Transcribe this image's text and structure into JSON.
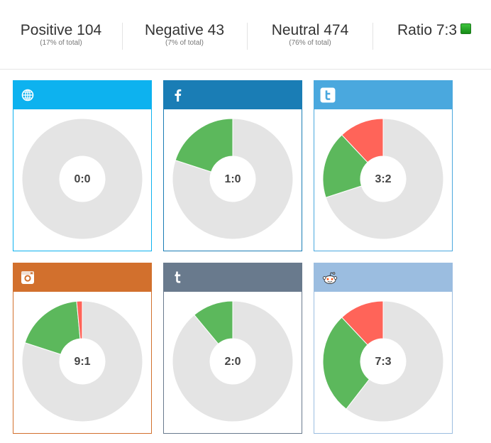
{
  "summary": {
    "positive": {
      "label": "Positive 104",
      "sub": "(17% of total)"
    },
    "negative": {
      "label": "Negative 43",
      "sub": "(7% of total)"
    },
    "neutral": {
      "label": "Neutral 474",
      "sub": "(76% of total)"
    },
    "ratio": {
      "label": "Ratio 7:3"
    }
  },
  "colors": {
    "positive": "#5cb85c",
    "negative": "#ff6459",
    "neutral": "#e4e4e4",
    "web": "#0db2ef",
    "facebook": "#1a7db5",
    "twitter": "#4aa8de",
    "instagram": "#d2702d",
    "tumblr": "#697a8d",
    "reddit": "#9bbde0"
  },
  "chart_data": [
    {
      "type": "pie",
      "source": "web-icon",
      "label": "0:0",
      "positive": 0,
      "negative": 0
    },
    {
      "type": "pie",
      "source": "facebook-icon",
      "label": "1:0",
      "positive": 0.2,
      "negative": 0
    },
    {
      "type": "pie",
      "source": "twitter-icon",
      "label": "3:2",
      "positive": 0.18,
      "negative": 0.12
    },
    {
      "type": "pie",
      "source": "instagram-icon",
      "label": "9:1",
      "positive": 0.185,
      "negative": 0.015
    },
    {
      "type": "pie",
      "source": "tumblr-icon",
      "label": "2:0",
      "positive": 0.11,
      "negative": 0
    },
    {
      "type": "pie",
      "source": "reddit-icon",
      "label": "7:3",
      "positive": 0.275,
      "negative": 0.12
    }
  ]
}
